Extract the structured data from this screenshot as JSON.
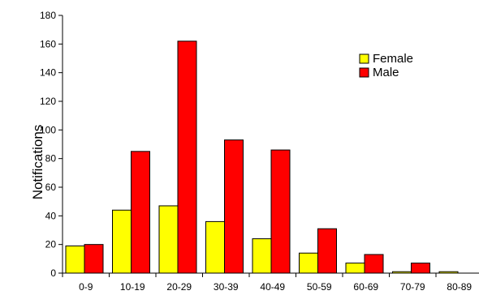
{
  "chart_data": {
    "type": "bar",
    "title": "",
    "xlabel": "",
    "ylabel": "Notifications",
    "ylim": [
      0,
      180
    ],
    "yticks": [
      0,
      20,
      40,
      60,
      80,
      100,
      120,
      140,
      160,
      180
    ],
    "categories": [
      "0-9",
      "10-19",
      "20-29",
      "30-39",
      "40-49",
      "50-59",
      "60-69",
      "70-79",
      "80-89"
    ],
    "series": [
      {
        "name": "Female",
        "color": "#FFFF00",
        "values": [
          19,
          44,
          47,
          36,
          24,
          14,
          7,
          1,
          1
        ]
      },
      {
        "name": "Male",
        "color": "#FF0000",
        "values": [
          20,
          85,
          162,
          93,
          86,
          31,
          13,
          7,
          0
        ]
      }
    ],
    "grid": false,
    "legend_position": "top-right"
  }
}
